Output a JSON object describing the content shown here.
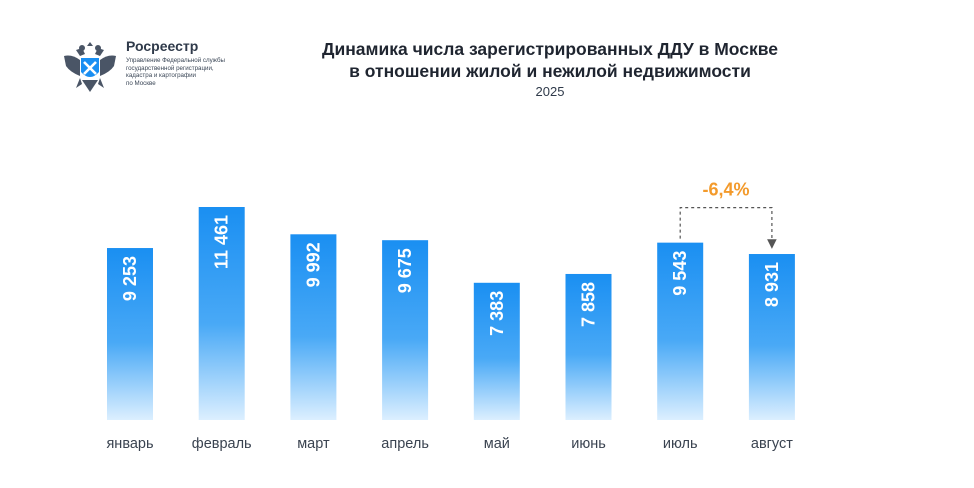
{
  "logo": {
    "name": "Росреестр",
    "subtitle_lines": [
      "Управление Федеральной службы",
      "государственной регистрации,",
      "кадастра и картографии",
      "по Москве"
    ]
  },
  "colors": {
    "bar_top": "#1a8ff2",
    "bar_bottom": "#dcefff",
    "accent": "#f39a2b",
    "text": "#1f2530"
  },
  "chart_data": {
    "type": "bar",
    "title": "Динамика числа зарегистрированных ДДУ в Москве в отношении жилой и нежилой недвижимости",
    "title_lines": [
      "Динамика числа зарегистрированных ДДУ в Москве",
      "в отношении жилой и нежилой недвижимости"
    ],
    "subtitle": "2025",
    "categories": [
      "январь",
      "февраль",
      "март",
      "апрель",
      "май",
      "июнь",
      "июль",
      "август"
    ],
    "values": [
      9253,
      11461,
      9992,
      9675,
      7383,
      7858,
      9543,
      8931
    ],
    "value_labels": [
      "9 253",
      "11 461",
      "9 992",
      "9 675",
      "7 383",
      "7 858",
      "9 543",
      "8 931"
    ],
    "xlabel": "",
    "ylabel": "",
    "ylim": [
      0,
      11461
    ],
    "grid": false,
    "legend": "none",
    "annotations": [
      {
        "text": "-6,4%",
        "from": "июль",
        "to": "август"
      }
    ]
  }
}
